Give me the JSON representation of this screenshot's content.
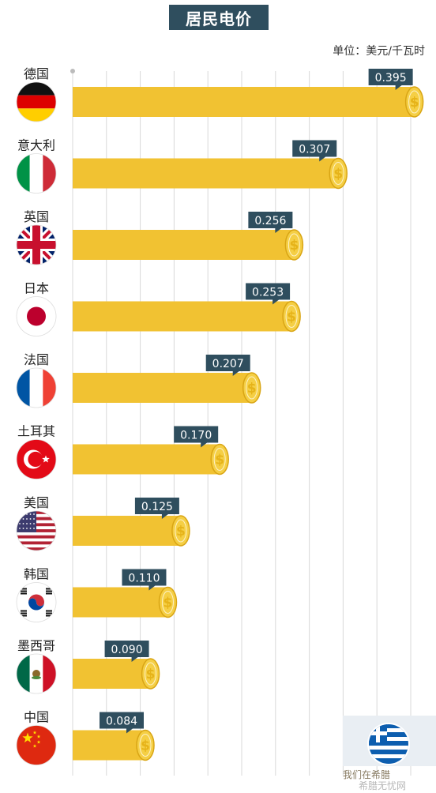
{
  "chart_data": {
    "type": "bar",
    "title": "居民电价",
    "unit_label": "单位：美元/千瓦时",
    "categories": [
      "德国",
      "意大利",
      "英国",
      "日本",
      "法国",
      "土耳其",
      "美国",
      "韩国",
      "墨西哥",
      "中国"
    ],
    "values": [
      0.395,
      0.307,
      0.256,
      0.253,
      0.207,
      0.17,
      0.125,
      0.11,
      0.09,
      0.084
    ],
    "value_labels": [
      "0.395",
      "0.307",
      "0.256",
      "0.253",
      "0.207",
      "0.170",
      "0.125",
      "0.110",
      "0.090",
      "0.084"
    ],
    "flags": [
      "germany-flag",
      "italy-flag",
      "uk-flag",
      "japan-flag",
      "france-flag",
      "turkey-flag",
      "usa-flag",
      "korea-flag",
      "mexico-flag",
      "china-flag"
    ],
    "xlim": [
      0,
      0.42
    ],
    "grid": true,
    "colors": {
      "bar": "#f1c232",
      "coin": "#f5cf45",
      "coin_symbol": "#e6b319",
      "label_box": "#2f4e5e",
      "grid": "#d8d8d8"
    }
  },
  "watermark": {
    "icon": "greece-flag-icon",
    "text": "我们在希腊",
    "site": "希腊无忧网"
  }
}
